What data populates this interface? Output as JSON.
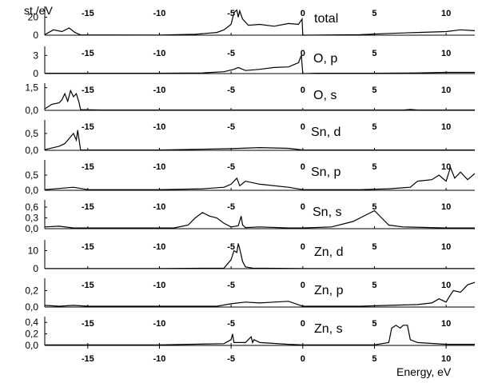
{
  "chart_data": {
    "type": "line",
    "ylabel": "st./eV",
    "xlabel": "Energy, eV",
    "xlim": [
      -18,
      12
    ],
    "xticks": [
      -15,
      -10,
      -5,
      0,
      5,
      10
    ],
    "grid": false,
    "legend": "none",
    "line_color": "#000000",
    "panels": [
      {
        "label": "total",
        "ylim": [
          0,
          32
        ],
        "yticks": [
          0,
          20
        ],
        "ytick_labels": [
          "0",
          "20"
        ],
        "x": [
          -18,
          -17.4,
          -16.8,
          -16.3,
          -15.9,
          -15.5,
          -10,
          -7.5,
          -6,
          -5.5,
          -5,
          -4.8,
          -4.6,
          -4.5,
          -4.4,
          -4.2,
          -3.8,
          -3,
          -2,
          -1,
          -0.3,
          -0.05,
          0,
          1,
          4,
          6,
          8,
          10,
          11,
          12
        ],
        "y": [
          0.5,
          6,
          4,
          8,
          3,
          0.3,
          0.2,
          1,
          3,
          6,
          12,
          25,
          28,
          20,
          27,
          18,
          11,
          12,
          10,
          13,
          12,
          18,
          0,
          0.2,
          0.5,
          2,
          3,
          4,
          6,
          5
        ]
      },
      {
        "label": "O, p",
        "ylim": [
          0,
          4.5
        ],
        "yticks": [
          0,
          3
        ],
        "ytick_labels": [
          "0",
          "3"
        ],
        "x": [
          -18,
          -10,
          -7,
          -5.5,
          -4.8,
          -4.5,
          -4,
          -3,
          -2,
          -1,
          -0.3,
          -0.1,
          0,
          1,
          5,
          8,
          10,
          12
        ],
        "y": [
          0.05,
          0.05,
          0.1,
          0.3,
          0.7,
          1.0,
          0.5,
          0.7,
          1.0,
          1.1,
          1.8,
          3.0,
          0,
          0.05,
          0.05,
          0.1,
          0.2,
          0.2
        ]
      },
      {
        "label": "O, s",
        "ylim": [
          0,
          1.8
        ],
        "yticks": [
          0,
          1.5
        ],
        "ytick_labels": [
          "0,0",
          "1,5"
        ],
        "x": [
          -18,
          -17.5,
          -17,
          -16.8,
          -16.6,
          -16.4,
          -16.2,
          -16,
          -15.8,
          -15.6,
          -15.5,
          -14,
          -5,
          0,
          7,
          7.5,
          8,
          12
        ],
        "y": [
          0.1,
          0.4,
          0.5,
          0.7,
          1.1,
          0.6,
          1.3,
          0.9,
          1.1,
          0.5,
          0.05,
          0.02,
          0.02,
          0.02,
          0.02,
          0.06,
          0.02,
          0.02
        ]
      },
      {
        "label": "Sn, d",
        "ylim": [
          0,
          0.9
        ],
        "yticks": [
          0,
          0.5
        ],
        "ytick_labels": [
          "0,0",
          "0,5"
        ],
        "x": [
          -18,
          -17,
          -16.6,
          -16.3,
          -16,
          -15.8,
          -15.7,
          -15.5,
          -10,
          -5,
          -3,
          -1,
          0,
          12
        ],
        "y": [
          0.02,
          0.12,
          0.2,
          0.35,
          0.5,
          0.3,
          0.6,
          0.01,
          0.01,
          0.05,
          0.08,
          0.06,
          0.01,
          0.01
        ]
      },
      {
        "label": "Sn, p",
        "ylim": [
          0,
          1.0
        ],
        "yticks": [
          0,
          0.5
        ],
        "ytick_labels": [
          "0,0",
          "0,5"
        ],
        "x": [
          -18,
          -16,
          -15,
          -10,
          -7,
          -5.5,
          -5,
          -4.6,
          -4.4,
          -4,
          -3,
          -1,
          0,
          4,
          6,
          7.5,
          8,
          9,
          9.5,
          10,
          10.3,
          10.6,
          11,
          11.5,
          12
        ],
        "y": [
          0.02,
          0.1,
          0.02,
          0.02,
          0.05,
          0.1,
          0.2,
          0.4,
          0.15,
          0.3,
          0.2,
          0.1,
          0.02,
          0.02,
          0.05,
          0.1,
          0.3,
          0.35,
          0.5,
          0.3,
          0.75,
          0.4,
          0.6,
          0.35,
          0.55
        ]
      },
      {
        "label": "Sn, s",
        "ylim": [
          0,
          0.8
        ],
        "yticks": [
          0,
          0.3,
          0.6
        ],
        "ytick_labels": [
          "0,0",
          "0,3",
          "0,6"
        ],
        "x": [
          -18,
          -17,
          -16,
          -9,
          -8,
          -7.5,
          -7,
          -6.5,
          -6,
          -5.5,
          -5,
          -4.5,
          -4.3,
          -4.2,
          -4,
          -3,
          -1,
          0,
          2,
          3.5,
          4.5,
          5,
          5.5,
          6,
          7,
          10,
          12
        ],
        "y": [
          0.05,
          0.07,
          0.02,
          0.02,
          0.1,
          0.3,
          0.45,
          0.35,
          0.3,
          0.15,
          0.05,
          0.08,
          0.35,
          0.1,
          0.03,
          0.05,
          0.02,
          0.02,
          0.05,
          0.2,
          0.4,
          0.5,
          0.3,
          0.1,
          0.05,
          0.02,
          0.02
        ]
      },
      {
        "label": "Zn, d",
        "ylim": [
          0,
          16
        ],
        "yticks": [
          0,
          10
        ],
        "ytick_labels": [
          "0",
          "10"
        ],
        "x": [
          -18,
          -10,
          -5.5,
          -5,
          -4.8,
          -4.6,
          -4.5,
          -4.4,
          -4.2,
          -4,
          -3.5,
          0,
          12
        ],
        "y": [
          0.1,
          0.1,
          0.3,
          5,
          10,
          9,
          14,
          11,
          4,
          1,
          0.3,
          0.1,
          0.1
        ]
      },
      {
        "label": "Zn, p",
        "ylim": [
          0,
          0.35
        ],
        "yticks": [
          0,
          0.2
        ],
        "ytick_labels": [
          "0,0",
          "0,2"
        ],
        "x": [
          -18,
          -17,
          -16,
          -15,
          -10,
          -6,
          -5,
          -4,
          -3,
          -2,
          -1,
          0,
          4,
          6,
          8,
          9,
          9.5,
          10,
          10.2,
          10.5,
          11,
          11.5,
          12
        ],
        "y": [
          0.02,
          0.01,
          0.02,
          0.01,
          0.01,
          0.01,
          0.04,
          0.06,
          0.05,
          0.06,
          0.07,
          0.01,
          0.01,
          0.02,
          0.03,
          0.05,
          0.1,
          0.06,
          0.12,
          0.2,
          0.18,
          0.27,
          0.3
        ]
      },
      {
        "label": "Zn, s",
        "ylim": [
          0,
          0.5
        ],
        "yticks": [
          0,
          0.2,
          0.4
        ],
        "ytick_labels": [
          "0,0",
          "0,2",
          "0,4"
        ],
        "x": [
          -18,
          -10,
          -5.5,
          -5,
          -4.9,
          -4.8,
          -4.5,
          -4,
          -3.6,
          -3.5,
          -3.4,
          -3,
          -1,
          0,
          5,
          6,
          6.2,
          6.5,
          6.8,
          7,
          7.3,
          7.5,
          8,
          10,
          12
        ],
        "y": [
          0.01,
          0.01,
          0.03,
          0.1,
          0.2,
          0.05,
          0.05,
          0.05,
          0.15,
          0.05,
          0.1,
          0.05,
          0.02,
          0.01,
          0.01,
          0.05,
          0.3,
          0.35,
          0.3,
          0.35,
          0.35,
          0.1,
          0.05,
          0.02,
          0.02
        ]
      }
    ]
  }
}
